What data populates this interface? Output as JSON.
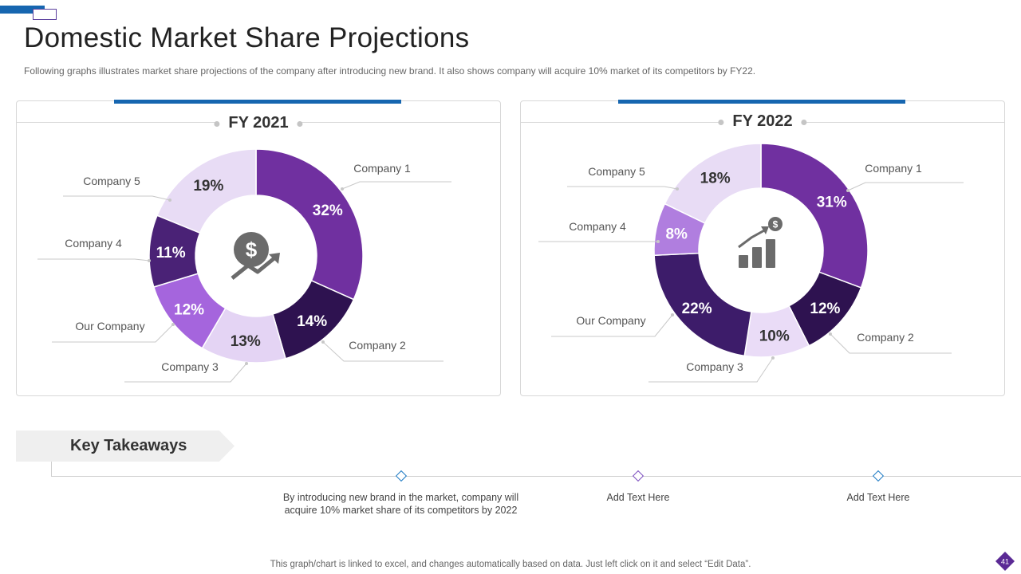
{
  "header": {
    "title": "Domestic Market Share Projections",
    "subtitle": "Following graphs illustrates market share projections of the company after introducing new brand. It also shows company will acquire 10% market of its competitors by FY22."
  },
  "colors": {
    "accent_blue": "#1666b0",
    "company1": "#7030a0",
    "company2": "#2e1250",
    "company3": "#e4d4f4",
    "our_company": "#a565dd",
    "company4": "#4a2276",
    "company5": "#e8dcf5",
    "fy22_company4": "#b07edf",
    "fy22_company3": "#eadcf7",
    "icon_gray": "#6b6b6b"
  },
  "chart_data": [
    {
      "type": "pie",
      "title": "FY 2021",
      "center_icon": "dollar-growth-icon",
      "slices": [
        {
          "label": "Company 1",
          "value": 32,
          "display": "32%"
        },
        {
          "label": "Company 2",
          "value": 14,
          "display": "14%"
        },
        {
          "label": "Company 3",
          "value": 13,
          "display": "13%"
        },
        {
          "label": "Our Company",
          "value": 12,
          "display": "12%"
        },
        {
          "label": "Company 4",
          "value": 11,
          "display": "11%"
        },
        {
          "label": "Company 5",
          "value": 19,
          "display": "19%"
        }
      ]
    },
    {
      "type": "pie",
      "title": "FY 2022",
      "center_icon": "bar-chart-dollar-icon",
      "slices": [
        {
          "label": "Company 1",
          "value": 31,
          "display": "31%"
        },
        {
          "label": "Company 2",
          "value": 12,
          "display": "12%"
        },
        {
          "label": "Company 3",
          "value": 10,
          "display": "10%"
        },
        {
          "label": "Our Company",
          "value": 22,
          "display": "22%"
        },
        {
          "label": "Company 4",
          "value": 8,
          "display": "8%"
        },
        {
          "label": "Company 5",
          "value": 18,
          "display": "18%"
        }
      ]
    }
  ],
  "key_takeaways": {
    "heading": "Key Takeaways",
    "items": [
      {
        "line1": "By introducing new brand in the market, company will",
        "line2": "acquire 10% market share of its competitors by 2022",
        "marker_color": "#1f7bc4"
      },
      {
        "line1": "Add Text Here",
        "line2": "",
        "marker_color": "#7d4fbf"
      },
      {
        "line1": "Add Text Here",
        "line2": "",
        "marker_color": "#1f7bc4"
      }
    ]
  },
  "footer": {
    "note": "This graph/chart is linked to excel, and changes automatically based on data. Just left click on it and select “Edit Data”.",
    "page_number": "41"
  }
}
